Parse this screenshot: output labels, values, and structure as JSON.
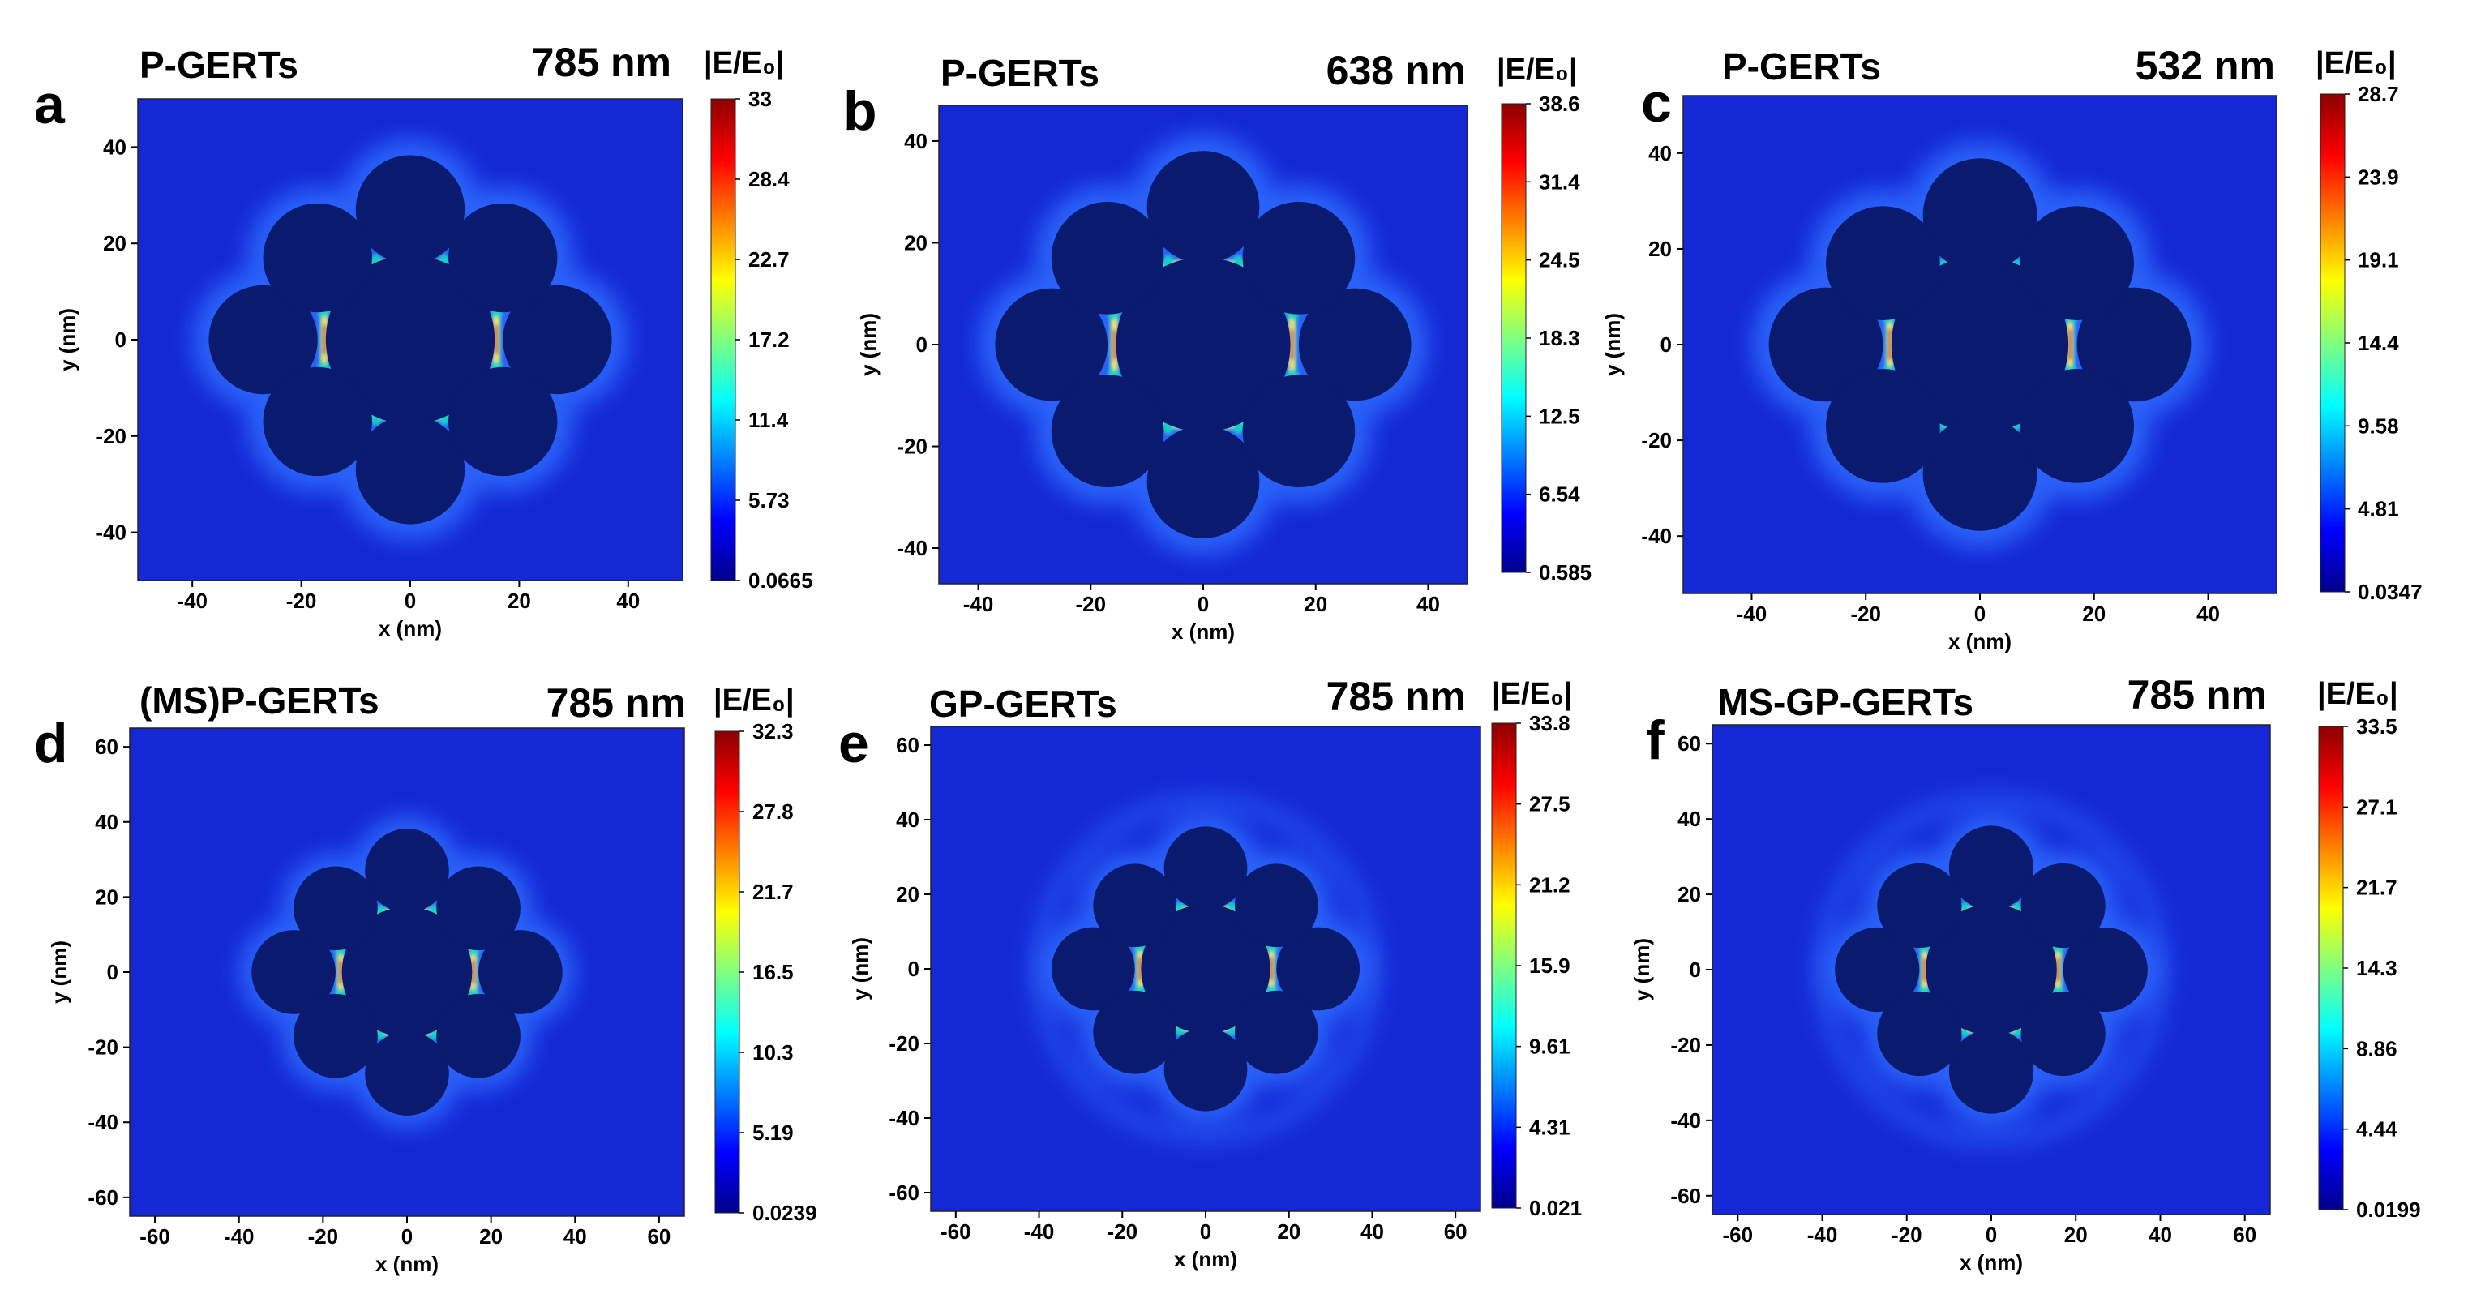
{
  "colors": {
    "field_background": "#1428d6",
    "particle": "#0a1a6e",
    "glow_outer": "#2f6cff",
    "hotspot_mid": "#19d3c5",
    "hotspot_core": "#ffe040",
    "hotspot_peak": "#d81e10"
  },
  "colormap": [
    "#00008b",
    "#0000ff",
    "#0080ff",
    "#00ffff",
    "#80ff80",
    "#ffff00",
    "#ff8000",
    "#ff0000",
    "#8b0000"
  ],
  "chart_data": [
    {
      "type": "heatmap",
      "panel": "a",
      "title": "P-GERTs",
      "wavelength": "785 nm",
      "colorbar_title": "|E/E₀|",
      "colorbar_ticks": [
        "33",
        "28.4",
        "22.7",
        "17.2",
        "11.4",
        "5.73",
        "0.0665"
      ],
      "xlabel": "x (nm)",
      "ylabel": "y (nm)",
      "xlim": [
        -50,
        50
      ],
      "ylim": [
        -50,
        50
      ],
      "xticks": [
        "-40",
        "-20",
        "0",
        "20",
        "40"
      ],
      "yticks": [
        "40",
        "20",
        "0",
        "-20",
        "-40"
      ],
      "shell": false
    },
    {
      "type": "heatmap",
      "panel": "b",
      "title": "P-GERTs",
      "wavelength": "638 nm",
      "colorbar_title": "|E/E₀|",
      "colorbar_ticks": [
        "38.6",
        "31.4",
        "24.5",
        "18.3",
        "12.5",
        "6.54",
        "0.585"
      ],
      "xlabel": "x (nm)",
      "ylabel": "y (nm)",
      "xlim": [
        -47,
        47
      ],
      "ylim": [
        -47,
        47
      ],
      "xticks": [
        "-40",
        "-20",
        "0",
        "20",
        "40"
      ],
      "yticks": [
        "40",
        "20",
        "0",
        "-20",
        "-40"
      ],
      "shell": false
    },
    {
      "type": "heatmap",
      "panel": "c",
      "title": "P-GERTs",
      "wavelength": "532 nm",
      "colorbar_title": "|E/E₀|",
      "colorbar_ticks": [
        "28.7",
        "23.9",
        "19.1",
        "14.4",
        "9.58",
        "4.81",
        "0.0347"
      ],
      "xlabel": "x (nm)",
      "ylabel": "y (nm)",
      "xlim": [
        -52,
        52
      ],
      "ylim": [
        -52,
        52
      ],
      "xticks": [
        "-40",
        "-20",
        "0",
        "20",
        "40"
      ],
      "yticks": [
        "40",
        "20",
        "0",
        "-20",
        "-40"
      ],
      "shell": false
    },
    {
      "type": "heatmap",
      "panel": "d",
      "title": "(MS)P-GERTs",
      "wavelength": "785 nm",
      "colorbar_title": "|E/E₀|",
      "colorbar_ticks": [
        "32.3",
        "27.8",
        "21.7",
        "16.5",
        "10.3",
        "5.19",
        "0.0239"
      ],
      "xlabel": "x (nm)",
      "ylabel": "y (nm)",
      "xlim": [
        -66,
        66
      ],
      "ylim": [
        -65,
        65
      ],
      "xticks": [
        "-60",
        "-40",
        "-20",
        "0",
        "20",
        "40",
        "60"
      ],
      "yticks": [
        "60",
        "40",
        "20",
        "0",
        "-20",
        "-40",
        "-60"
      ],
      "shell": false
    },
    {
      "type": "heatmap",
      "panel": "e",
      "title": "GP-GERTs",
      "wavelength": "785 nm",
      "colorbar_title": "|E/E₀|",
      "colorbar_ticks": [
        "33.8",
        "27.5",
        "21.2",
        "15.9",
        "9.61",
        "4.31",
        "0.021"
      ],
      "xlabel": "x (nm)",
      "ylabel": "y (nm)",
      "xlim": [
        -66,
        66
      ],
      "ylim": [
        -65,
        65
      ],
      "xticks": [
        "-60",
        "-40",
        "-20",
        "0",
        "20",
        "40",
        "60"
      ],
      "yticks": [
        "60",
        "40",
        "20",
        "0",
        "-20",
        "-40",
        "-60"
      ],
      "shell": true
    },
    {
      "type": "heatmap",
      "panel": "f",
      "title": "MS-GP-GERTs",
      "wavelength": "785 nm",
      "colorbar_title": "|E/E₀|",
      "colorbar_ticks": [
        "33.5",
        "27.1",
        "21.7",
        "14.3",
        "8.86",
        "4.44",
        "0.0199"
      ],
      "xlabel": "x (nm)",
      "ylabel": "y (nm)",
      "xlim": [
        -66,
        66
      ],
      "ylim": [
        -65,
        65
      ],
      "xticks": [
        "-60",
        "-40",
        "-20",
        "0",
        "20",
        "40",
        "60"
      ],
      "yticks": [
        "60",
        "40",
        "20",
        "0",
        "-20",
        "-40",
        "-60"
      ],
      "shell": true
    }
  ]
}
